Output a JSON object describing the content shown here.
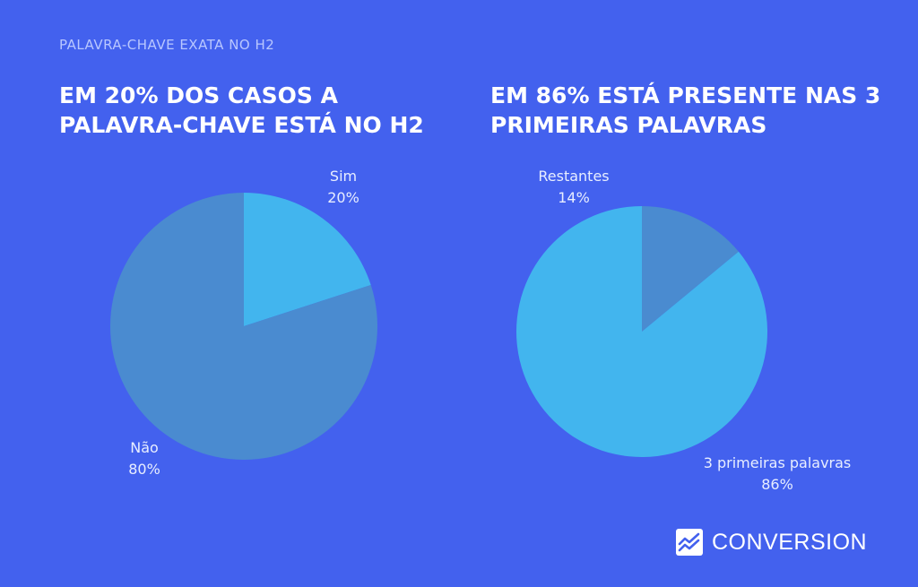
{
  "kicker": "PALAVRA-CHAVE EXATA NO  H2",
  "brand": {
    "name": "CONVERSION",
    "icon": "chart-trend-icon"
  },
  "colors": {
    "background": "#4361EE",
    "dark_slice": "#4A8BD0",
    "light_slice": "#42B5EE"
  },
  "chart_data": [
    {
      "type": "pie",
      "title": "EM 20% DOS CASOS A PALAVRA-CHAVE ESTÁ NO H2",
      "categories": [
        "Sim",
        "Não"
      ],
      "values": [
        20,
        80
      ],
      "value_labels": [
        "20%",
        "80%"
      ],
      "colors": [
        "#42B5EE",
        "#4A8BD0"
      ],
      "legend": "none"
    },
    {
      "type": "pie",
      "title": "EM 86% ESTÁ PRESENTE NAS 3 PRIMEIRAS PALAVRAS",
      "categories": [
        "Restantes",
        "3 primeiras palavras"
      ],
      "values": [
        14,
        86
      ],
      "value_labels": [
        "14%",
        "86%"
      ],
      "colors": [
        "#4A8BD0",
        "#42B5EE"
      ],
      "legend": "none"
    }
  ]
}
